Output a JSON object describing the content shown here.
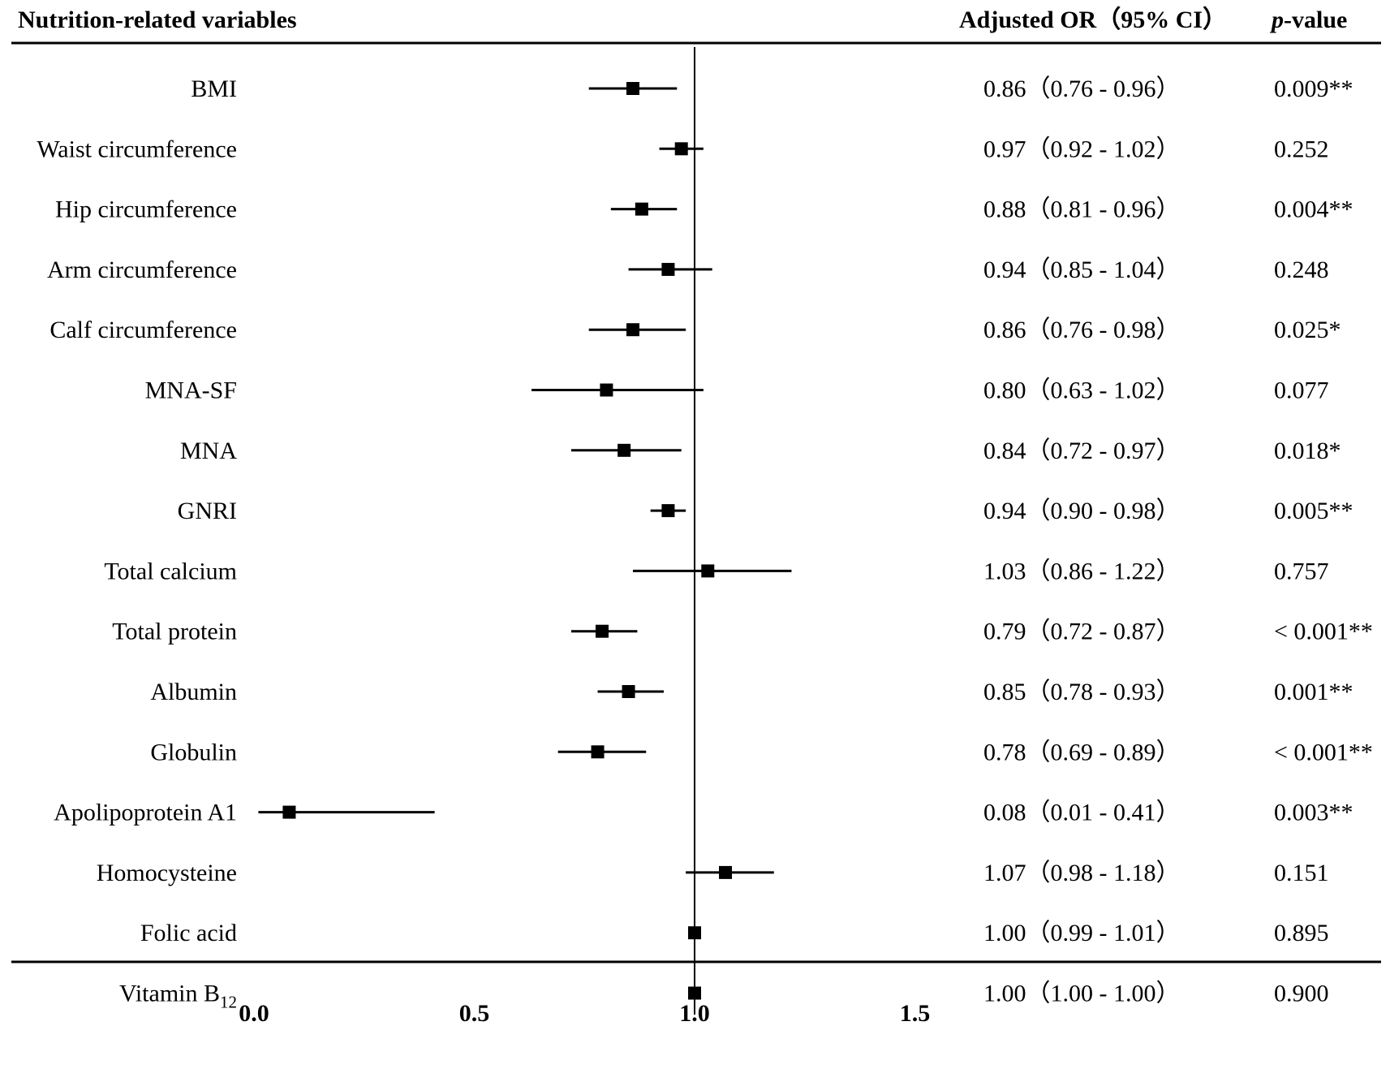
{
  "chart_data": {
    "type": "forest",
    "header": {
      "variables": "Nutrition-related variables",
      "or_ci": "Adjusted OR（95% CI）",
      "p_italic": "p",
      "p_rest": "-value"
    },
    "reference_line": 1.0,
    "xlim": [
      0.0,
      1.5
    ],
    "xticks": [
      "0.0",
      "0.5",
      "1.0",
      "1.5"
    ],
    "rows": [
      {
        "label": "BMI",
        "or": 0.86,
        "lo": 0.76,
        "hi": 0.96,
        "ci_text": "0.86（0.76 - 0.96）",
        "p": "0.009**"
      },
      {
        "label": "Waist circumference",
        "or": 0.97,
        "lo": 0.92,
        "hi": 1.02,
        "ci_text": "0.97（0.92 - 1.02）",
        "p": "0.252"
      },
      {
        "label": "Hip circumference",
        "or": 0.88,
        "lo": 0.81,
        "hi": 0.96,
        "ci_text": "0.88（0.81 - 0.96）",
        "p": "0.004**"
      },
      {
        "label": "Arm circumference",
        "or": 0.94,
        "lo": 0.85,
        "hi": 1.04,
        "ci_text": "0.94（0.85 - 1.04）",
        "p": "0.248"
      },
      {
        "label": "Calf circumference",
        "or": 0.86,
        "lo": 0.76,
        "hi": 0.98,
        "ci_text": "0.86（0.76 - 0.98）",
        "p": "0.025*"
      },
      {
        "label": "MNA-SF",
        "or": 0.8,
        "lo": 0.63,
        "hi": 1.02,
        "ci_text": "0.80（0.63 - 1.02）",
        "p": "0.077"
      },
      {
        "label": "MNA",
        "or": 0.84,
        "lo": 0.72,
        "hi": 0.97,
        "ci_text": "0.84（0.72 - 0.97）",
        "p": "0.018*"
      },
      {
        "label": "GNRI",
        "or": 0.94,
        "lo": 0.9,
        "hi": 0.98,
        "ci_text": "0.94（0.90 - 0.98）",
        "p": "0.005**"
      },
      {
        "label": "Total calcium",
        "or": 1.03,
        "lo": 0.86,
        "hi": 1.22,
        "ci_text": "1.03（0.86 - 1.22）",
        "p": "0.757"
      },
      {
        "label": "Total protein",
        "or": 0.79,
        "lo": 0.72,
        "hi": 0.87,
        "ci_text": "0.79（0.72 - 0.87）",
        "p": "< 0.001**"
      },
      {
        "label": "Albumin",
        "or": 0.85,
        "lo": 0.78,
        "hi": 0.93,
        "ci_text": "0.85（0.78 - 0.93）",
        "p": "0.001**"
      },
      {
        "label": "Globulin",
        "or": 0.78,
        "lo": 0.69,
        "hi": 0.89,
        "ci_text": "0.78（0.69 - 0.89）",
        "p": "< 0.001**"
      },
      {
        "label": "Apolipoprotein A1",
        "or": 0.08,
        "lo": 0.01,
        "hi": 0.41,
        "ci_text": "0.08（0.01 - 0.41）",
        "p": "0.003**"
      },
      {
        "label": "Homocysteine",
        "or": 1.07,
        "lo": 0.98,
        "hi": 1.18,
        "ci_text": "1.07（0.98 - 1.18）",
        "p": "0.151"
      },
      {
        "label": "Folic acid",
        "or": 1.0,
        "lo": 0.99,
        "hi": 1.01,
        "ci_text": "1.00（0.99 - 1.01）",
        "p": "0.895"
      },
      {
        "label": "Vitamin B",
        "label_sub": "12",
        "or": 1.0,
        "lo": 1.0,
        "hi": 1.0,
        "ci_text": "1.00（1.00 - 1.00）",
        "p": "0.900"
      }
    ]
  }
}
